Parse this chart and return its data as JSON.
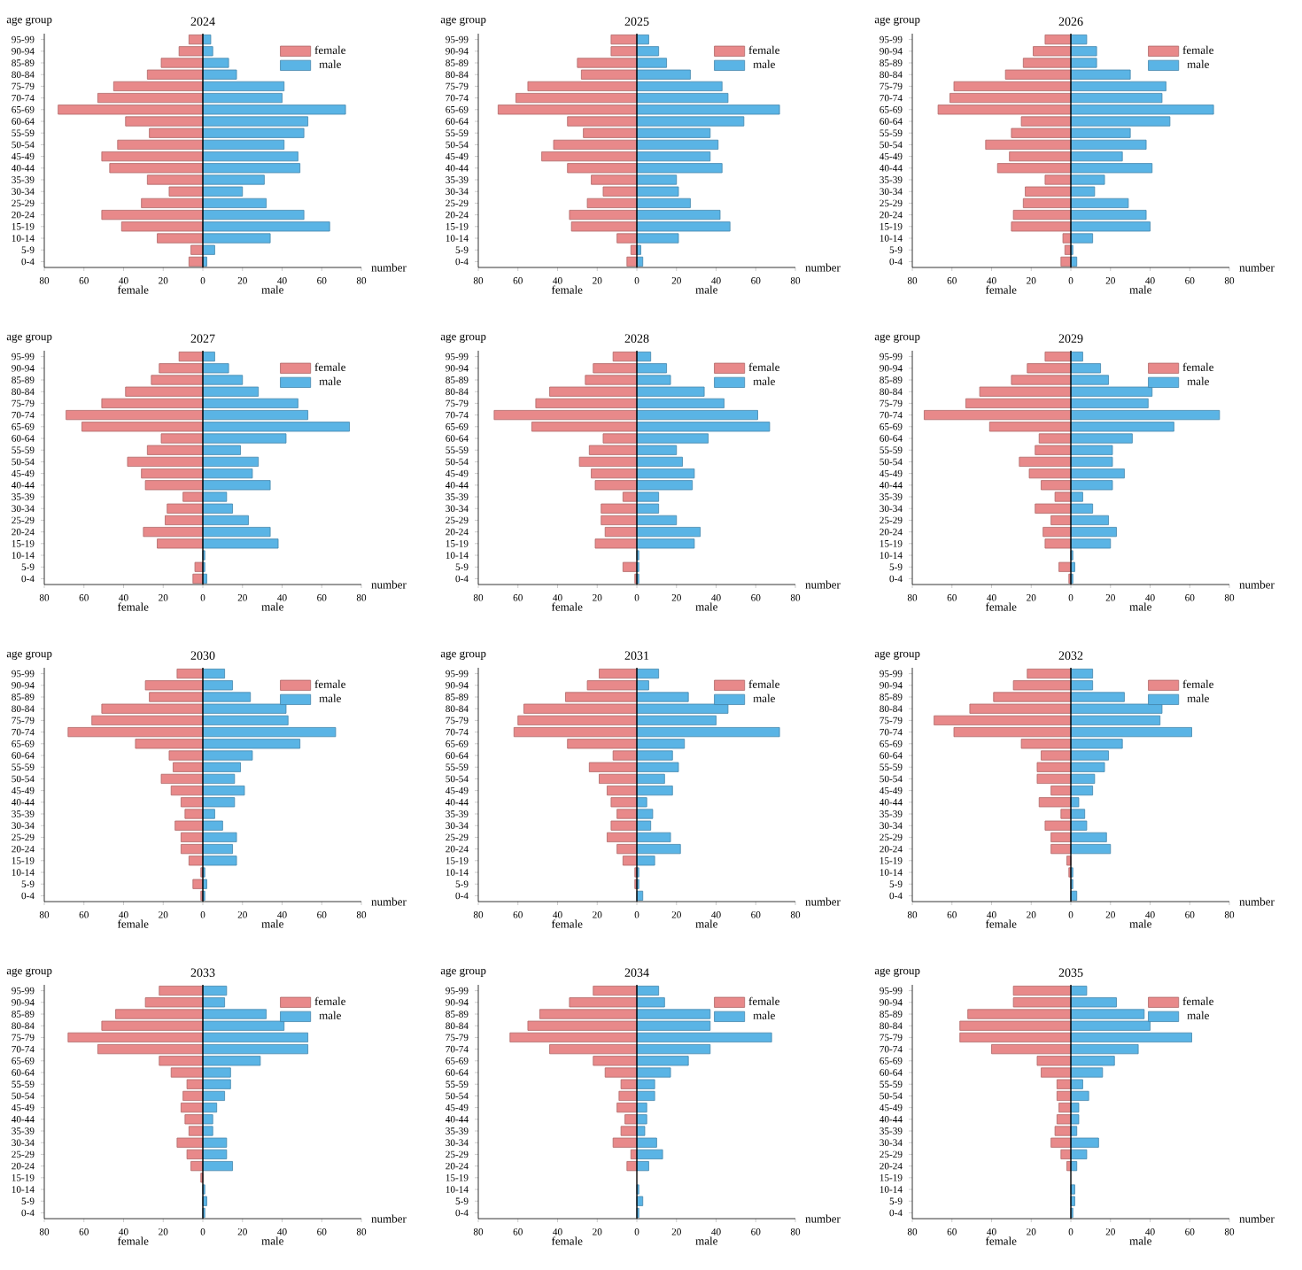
{
  "chart_data": [
    {
      "type": "bar",
      "orientation": "horizontal",
      "stacked": true,
      "title": "2024",
      "xlabel": "number",
      "ylabel": "age group",
      "annotations": [
        "female",
        "male"
      ],
      "legend": "top right",
      "xlim": [
        -80,
        80
      ],
      "xticks": [
        {
          "value": -80,
          "label": "80"
        },
        {
          "value": -60,
          "label": "60"
        },
        {
          "value": -40,
          "label": "40"
        },
        {
          "value": -20,
          "label": "20"
        },
        0,
        20,
        40,
        60,
        80
      ],
      "ref_lines": [
        {
          "axis": "x",
          "value": 0,
          "color": "#000000"
        }
      ],
      "categories": [
        "95-99",
        "90-94",
        "85-89",
        "80-84",
        "75-79",
        "70-74",
        "65-69",
        "60-64",
        "55-59",
        "50-54",
        "45-49",
        "40-44",
        "35-39",
        "30-34",
        "25-29",
        "20-24",
        "15-19",
        "10-14",
        "5-9",
        "0-4"
      ],
      "series": [
        {
          "name": "female",
          "color": "#e8898a",
          "values": [
            -7,
            -12,
            -21,
            -28,
            -45,
            -53,
            -73,
            -39,
            -27,
            -43,
            -51,
            -47,
            -28,
            -17,
            -31,
            -51,
            -41,
            -23,
            -6,
            -7
          ]
        },
        {
          "name": "male",
          "color": "#5ab4e5",
          "values": [
            4,
            5,
            13,
            17,
            41,
            40,
            72,
            53,
            51,
            41,
            48,
            49,
            31,
            20,
            32,
            51,
            64,
            34,
            6,
            2
          ]
        }
      ]
    },
    {
      "type": "bar",
      "orientation": "horizontal",
      "stacked": true,
      "title": "2025",
      "xlabel": "number",
      "ylabel": "age group",
      "annotations": [
        "female",
        "male"
      ],
      "legend": "top right",
      "xlim": [
        -80,
        80
      ],
      "xticks": [
        {
          "value": -80,
          "label": "80"
        },
        {
          "value": -60,
          "label": "60"
        },
        {
          "value": -40,
          "label": "40"
        },
        {
          "value": -20,
          "label": "20"
        },
        0,
        20,
        40,
        60,
        80
      ],
      "ref_lines": [
        {
          "axis": "x",
          "value": 0,
          "color": "#000000"
        }
      ],
      "categories": [
        "95-99",
        "90-94",
        "85-89",
        "80-84",
        "75-79",
        "70-74",
        "65-69",
        "60-64",
        "55-59",
        "50-54",
        "45-49",
        "40-44",
        "35-39",
        "30-34",
        "25-29",
        "20-24",
        "15-19",
        "10-14",
        "5-9",
        "0-4"
      ],
      "series": [
        {
          "name": "female",
          "color": "#e8898a",
          "values": [
            -13,
            -13,
            -30,
            -28,
            -55,
            -61,
            -70,
            -35,
            -27,
            -42,
            -48,
            -35,
            -23,
            -17,
            -25,
            -34,
            -33,
            -10,
            -3,
            -5
          ]
        },
        {
          "name": "male",
          "color": "#5ab4e5",
          "values": [
            6,
            11,
            15,
            27,
            43,
            46,
            72,
            54,
            37,
            41,
            37,
            43,
            20,
            21,
            27,
            42,
            47,
            21,
            2,
            3
          ]
        }
      ]
    },
    {
      "type": "bar",
      "orientation": "horizontal",
      "stacked": true,
      "title": "2026",
      "xlabel": "number",
      "ylabel": "age group",
      "annotations": [
        "female",
        "male"
      ],
      "legend": "top right",
      "xlim": [
        -80,
        80
      ],
      "xticks": [
        {
          "value": -80,
          "label": "80"
        },
        {
          "value": -60,
          "label": "60"
        },
        {
          "value": -40,
          "label": "40"
        },
        {
          "value": -20,
          "label": "20"
        },
        0,
        20,
        40,
        60,
        80
      ],
      "ref_lines": [
        {
          "axis": "x",
          "value": 0,
          "color": "#000000"
        }
      ],
      "categories": [
        "95-99",
        "90-94",
        "85-89",
        "80-84",
        "75-79",
        "70-74",
        "65-69",
        "60-64",
        "55-59",
        "50-54",
        "45-49",
        "40-44",
        "35-39",
        "30-34",
        "25-29",
        "20-24",
        "15-19",
        "10-14",
        "5-9",
        "0-4"
      ],
      "series": [
        {
          "name": "female",
          "color": "#e8898a",
          "values": [
            -13,
            -19,
            -24,
            -33,
            -59,
            -61,
            -67,
            -25,
            -30,
            -43,
            -31,
            -37,
            -13,
            -23,
            -24,
            -29,
            -30,
            -4,
            -3,
            -5
          ]
        },
        {
          "name": "male",
          "color": "#5ab4e5",
          "values": [
            8,
            13,
            13,
            30,
            48,
            46,
            72,
            50,
            30,
            38,
            26,
            41,
            17,
            12,
            29,
            38,
            40,
            11,
            1,
            3
          ]
        }
      ]
    },
    {
      "type": "bar",
      "orientation": "horizontal",
      "stacked": true,
      "title": "2027",
      "xlabel": "number",
      "ylabel": "age group",
      "annotations": [
        "female",
        "male"
      ],
      "legend": "top right",
      "xlim": [
        -80,
        80
      ],
      "xticks": [
        {
          "value": -80,
          "label": "80"
        },
        {
          "value": -60,
          "label": "60"
        },
        {
          "value": -40,
          "label": "40"
        },
        {
          "value": -20,
          "label": "20"
        },
        0,
        20,
        40,
        60,
        80
      ],
      "ref_lines": [
        {
          "axis": "x",
          "value": 0,
          "color": "#000000"
        }
      ],
      "categories": [
        "95-99",
        "90-94",
        "85-89",
        "80-84",
        "75-79",
        "70-74",
        "65-69",
        "60-64",
        "55-59",
        "50-54",
        "45-49",
        "40-44",
        "35-39",
        "30-34",
        "25-29",
        "20-24",
        "15-19",
        "10-14",
        "5-9",
        "0-4"
      ],
      "series": [
        {
          "name": "female",
          "color": "#e8898a",
          "values": [
            -12,
            -22,
            -26,
            -39,
            -51,
            -69,
            -61,
            -21,
            -28,
            -38,
            -31,
            -29,
            -10,
            -18,
            -19,
            -30,
            -23,
            null,
            -4,
            -5
          ]
        },
        {
          "name": "male",
          "color": "#5ab4e5",
          "values": [
            6,
            13,
            20,
            28,
            48,
            53,
            74,
            42,
            19,
            28,
            25,
            34,
            12,
            15,
            23,
            34,
            38,
            1,
            1,
            2
          ]
        }
      ]
    },
    {
      "type": "bar",
      "orientation": "horizontal",
      "stacked": true,
      "title": "2028",
      "xlabel": "number",
      "ylabel": "age group",
      "annotations": [
        "female",
        "male"
      ],
      "legend": "top right",
      "xlim": [
        -80,
        80
      ],
      "xticks": [
        {
          "value": -80,
          "label": "80"
        },
        {
          "value": -60,
          "label": "60"
        },
        {
          "value": -40,
          "label": "40"
        },
        {
          "value": -20,
          "label": "20"
        },
        0,
        20,
        40,
        60,
        80
      ],
      "ref_lines": [
        {
          "axis": "x",
          "value": 0,
          "color": "#000000"
        }
      ],
      "categories": [
        "95-99",
        "90-94",
        "85-89",
        "80-84",
        "75-79",
        "70-74",
        "65-69",
        "60-64",
        "55-59",
        "50-54",
        "45-49",
        "40-44",
        "35-39",
        "30-34",
        "25-29",
        "20-24",
        "15-19",
        "10-14",
        "5-9",
        "0-4"
      ],
      "series": [
        {
          "name": "female",
          "color": "#e8898a",
          "values": [
            -12,
            -22,
            -26,
            -44,
            -51,
            -72,
            -53,
            -17,
            -24,
            -29,
            -23,
            -21,
            -7,
            -18,
            -18,
            -16,
            -21,
            null,
            -7,
            -1
          ]
        },
        {
          "name": "male",
          "color": "#5ab4e5",
          "values": [
            7,
            15,
            17,
            34,
            44,
            61,
            67,
            36,
            20,
            23,
            29,
            28,
            11,
            11,
            20,
            32,
            29,
            1,
            1,
            1
          ]
        }
      ]
    },
    {
      "type": "bar",
      "orientation": "horizontal",
      "stacked": true,
      "title": "2029",
      "xlabel": "number",
      "ylabel": "age group",
      "annotations": [
        "female",
        "male"
      ],
      "legend": "top right",
      "xlim": [
        -80,
        80
      ],
      "xticks": [
        {
          "value": -80,
          "label": "80"
        },
        {
          "value": -60,
          "label": "60"
        },
        {
          "value": -40,
          "label": "40"
        },
        {
          "value": -20,
          "label": "20"
        },
        0,
        20,
        40,
        60,
        80
      ],
      "ref_lines": [
        {
          "axis": "x",
          "value": 0,
          "color": "#000000"
        }
      ],
      "categories": [
        "95-99",
        "90-94",
        "85-89",
        "80-84",
        "75-79",
        "70-74",
        "65-69",
        "60-64",
        "55-59",
        "50-54",
        "45-49",
        "40-44",
        "35-39",
        "30-34",
        "25-29",
        "20-24",
        "15-19",
        "10-14",
        "5-9",
        "0-4"
      ],
      "series": [
        {
          "name": "female",
          "color": "#e8898a",
          "values": [
            -13,
            -22,
            -30,
            -46,
            -53,
            -74,
            -41,
            -16,
            -18,
            -26,
            -21,
            -15,
            -8,
            -18,
            -10,
            -14,
            -13,
            null,
            -6,
            -1
          ]
        },
        {
          "name": "male",
          "color": "#5ab4e5",
          "values": [
            6,
            15,
            19,
            41,
            39,
            75,
            52,
            31,
            21,
            21,
            27,
            21,
            6,
            11,
            19,
            23,
            20,
            1,
            2,
            1
          ]
        }
      ]
    },
    {
      "type": "bar",
      "orientation": "horizontal",
      "stacked": true,
      "title": "2030",
      "xlabel": "number",
      "ylabel": "age group",
      "annotations": [
        "female",
        "male"
      ],
      "legend": "top right",
      "xlim": [
        -80,
        80
      ],
      "xticks": [
        {
          "value": -80,
          "label": "80"
        },
        {
          "value": -60,
          "label": "60"
        },
        {
          "value": -40,
          "label": "40"
        },
        {
          "value": -20,
          "label": "20"
        },
        0,
        20,
        40,
        60,
        80
      ],
      "ref_lines": [
        {
          "axis": "x",
          "value": 0,
          "color": "#000000"
        }
      ],
      "categories": [
        "95-99",
        "90-94",
        "85-89",
        "80-84",
        "75-79",
        "70-74",
        "65-69",
        "60-64",
        "55-59",
        "50-54",
        "45-49",
        "40-44",
        "35-39",
        "30-34",
        "25-29",
        "20-24",
        "15-19",
        "10-14",
        "5-9",
        "0-4"
      ],
      "series": [
        {
          "name": "female",
          "color": "#e8898a",
          "values": [
            -13,
            -29,
            -27,
            -51,
            -56,
            -68,
            -34,
            -17,
            -15,
            -21,
            -16,
            -11,
            -9,
            -14,
            -11,
            -11,
            -7,
            -1,
            -5,
            -1
          ]
        },
        {
          "name": "male",
          "color": "#5ab4e5",
          "values": [
            11,
            15,
            24,
            42,
            43,
            67,
            49,
            25,
            19,
            16,
            21,
            16,
            6,
            10,
            17,
            15,
            17,
            1,
            2,
            1
          ]
        }
      ]
    },
    {
      "type": "bar",
      "orientation": "horizontal",
      "stacked": true,
      "title": "2031",
      "xlabel": "number",
      "ylabel": "age group",
      "annotations": [
        "female",
        "male"
      ],
      "legend": "top right",
      "xlim": [
        -80,
        80
      ],
      "xticks": [
        {
          "value": -80,
          "label": "80"
        },
        {
          "value": -60,
          "label": "60"
        },
        {
          "value": -40,
          "label": "40"
        },
        {
          "value": -20,
          "label": "20"
        },
        0,
        20,
        40,
        60,
        80
      ],
      "ref_lines": [
        {
          "axis": "x",
          "value": 0,
          "color": "#000000"
        }
      ],
      "categories": [
        "95-99",
        "90-94",
        "85-89",
        "80-84",
        "75-79",
        "70-74",
        "65-69",
        "60-64",
        "55-59",
        "50-54",
        "45-49",
        "40-44",
        "35-39",
        "30-34",
        "25-29",
        "20-24",
        "15-19",
        "10-14",
        "5-9",
        "0-4"
      ],
      "series": [
        {
          "name": "female",
          "color": "#e8898a",
          "values": [
            -19,
            -25,
            -36,
            -57,
            -60,
            -62,
            -35,
            -12,
            -24,
            -19,
            -15,
            -13,
            -10,
            -13,
            -15,
            -10,
            -7,
            -1,
            -1,
            null
          ]
        },
        {
          "name": "male",
          "color": "#5ab4e5",
          "values": [
            11,
            6,
            26,
            46,
            40,
            72,
            24,
            18,
            21,
            14,
            18,
            5,
            8,
            7,
            17,
            22,
            9,
            1,
            1,
            3
          ]
        }
      ]
    },
    {
      "type": "bar",
      "orientation": "horizontal",
      "stacked": true,
      "title": "2032",
      "xlabel": "number",
      "ylabel": "age group",
      "annotations": [
        "female",
        "male"
      ],
      "legend": "top right",
      "xlim": [
        -80,
        80
      ],
      "xticks": [
        {
          "value": -80,
          "label": "80"
        },
        {
          "value": -60,
          "label": "60"
        },
        {
          "value": -40,
          "label": "40"
        },
        {
          "value": -20,
          "label": "20"
        },
        0,
        20,
        40,
        60,
        80
      ],
      "ref_lines": [
        {
          "axis": "x",
          "value": 0,
          "color": "#000000"
        }
      ],
      "categories": [
        "95-99",
        "90-94",
        "85-89",
        "80-84",
        "75-79",
        "70-74",
        "65-69",
        "60-64",
        "55-59",
        "50-54",
        "45-49",
        "40-44",
        "35-39",
        "30-34",
        "25-29",
        "20-24",
        "15-19",
        "10-14",
        "5-9",
        "0-4"
      ],
      "series": [
        {
          "name": "female",
          "color": "#e8898a",
          "values": [
            -22,
            -29,
            -39,
            -51,
            -69,
            -59,
            -25,
            -15,
            -17,
            -17,
            -10,
            -16,
            -5,
            -13,
            -10,
            -10,
            -2,
            -1,
            null,
            null
          ]
        },
        {
          "name": "male",
          "color": "#5ab4e5",
          "values": [
            11,
            11,
            27,
            46,
            45,
            61,
            26,
            19,
            17,
            12,
            11,
            4,
            7,
            8,
            18,
            20,
            null,
            1,
            1,
            3
          ]
        }
      ]
    },
    {
      "type": "bar",
      "orientation": "horizontal",
      "stacked": true,
      "title": "2033",
      "xlabel": "number",
      "ylabel": "age group",
      "annotations": [
        "female",
        "male"
      ],
      "legend": "top right",
      "xlim": [
        -80,
        80
      ],
      "xticks": [
        {
          "value": -80,
          "label": "80"
        },
        {
          "value": -60,
          "label": "60"
        },
        {
          "value": -40,
          "label": "40"
        },
        {
          "value": -20,
          "label": "20"
        },
        0,
        20,
        40,
        60,
        80
      ],
      "ref_lines": [
        {
          "axis": "x",
          "value": 0,
          "color": "#000000"
        }
      ],
      "categories": [
        "95-99",
        "90-94",
        "85-89",
        "80-84",
        "75-79",
        "70-74",
        "65-69",
        "60-64",
        "55-59",
        "50-54",
        "45-49",
        "40-44",
        "35-39",
        "30-34",
        "25-29",
        "20-24",
        "15-19",
        "10-14",
        "5-9",
        "0-4"
      ],
      "series": [
        {
          "name": "female",
          "color": "#e8898a",
          "values": [
            -22,
            -29,
            -44,
            -51,
            -68,
            -53,
            -22,
            -16,
            -8,
            -10,
            -11,
            -9,
            -7,
            -13,
            -8,
            -6,
            -1,
            null,
            null,
            null
          ]
        },
        {
          "name": "male",
          "color": "#5ab4e5",
          "values": [
            12,
            11,
            32,
            41,
            53,
            53,
            29,
            14,
            14,
            11,
            7,
            5,
            5,
            12,
            12,
            15,
            null,
            1,
            2,
            1
          ]
        }
      ]
    },
    {
      "type": "bar",
      "orientation": "horizontal",
      "stacked": true,
      "title": "2034",
      "xlabel": "number",
      "ylabel": "age group",
      "annotations": [
        "female",
        "male"
      ],
      "legend": "top right",
      "xlim": [
        -80,
        80
      ],
      "xticks": [
        {
          "value": -80,
          "label": "80"
        },
        {
          "value": -60,
          "label": "60"
        },
        {
          "value": -40,
          "label": "40"
        },
        {
          "value": -20,
          "label": "20"
        },
        0,
        20,
        40,
        60,
        80
      ],
      "ref_lines": [
        {
          "axis": "x",
          "value": 0,
          "color": "#000000"
        }
      ],
      "categories": [
        "95-99",
        "90-94",
        "85-89",
        "80-84",
        "75-79",
        "70-74",
        "65-69",
        "60-64",
        "55-59",
        "50-54",
        "45-49",
        "40-44",
        "35-39",
        "30-34",
        "25-29",
        "20-24",
        "15-19",
        "10-14",
        "5-9",
        "0-4"
      ],
      "series": [
        {
          "name": "female",
          "color": "#e8898a",
          "values": [
            -22,
            -34,
            -49,
            -55,
            -64,
            -44,
            -22,
            -16,
            -8,
            -9,
            -10,
            -6,
            -8,
            -12,
            -3,
            -5,
            null,
            null,
            null,
            null
          ]
        },
        {
          "name": "male",
          "color": "#5ab4e5",
          "values": [
            11,
            14,
            37,
            37,
            68,
            37,
            26,
            17,
            9,
            9,
            5,
            5,
            4,
            10,
            13,
            6,
            null,
            1,
            3,
            1
          ]
        }
      ]
    },
    {
      "type": "bar",
      "orientation": "horizontal",
      "stacked": true,
      "title": "2035",
      "xlabel": "number",
      "ylabel": "age group",
      "annotations": [
        "female",
        "male"
      ],
      "legend": "top right",
      "xlim": [
        -80,
        80
      ],
      "xticks": [
        {
          "value": -80,
          "label": "80"
        },
        {
          "value": -60,
          "label": "60"
        },
        {
          "value": -40,
          "label": "40"
        },
        {
          "value": -20,
          "label": "20"
        },
        0,
        20,
        40,
        60,
        80
      ],
      "ref_lines": [
        {
          "axis": "x",
          "value": 0,
          "color": "#000000"
        }
      ],
      "categories": [
        "95-99",
        "90-94",
        "85-89",
        "80-84",
        "75-79",
        "70-74",
        "65-69",
        "60-64",
        "55-59",
        "50-54",
        "45-49",
        "40-44",
        "35-39",
        "30-34",
        "25-29",
        "20-24",
        "15-19",
        "10-14",
        "5-9",
        "0-4"
      ],
      "series": [
        {
          "name": "female",
          "color": "#e8898a",
          "values": [
            -29,
            -29,
            -52,
            -56,
            -56,
            -40,
            -17,
            -15,
            -7,
            -7,
            -6,
            -7,
            -8,
            -10,
            -5,
            -2,
            null,
            null,
            null,
            null
          ]
        },
        {
          "name": "male",
          "color": "#5ab4e5",
          "values": [
            8,
            23,
            37,
            40,
            61,
            34,
            22,
            16,
            6,
            9,
            4,
            4,
            3,
            14,
            8,
            3,
            null,
            2,
            2,
            1
          ]
        }
      ]
    }
  ]
}
